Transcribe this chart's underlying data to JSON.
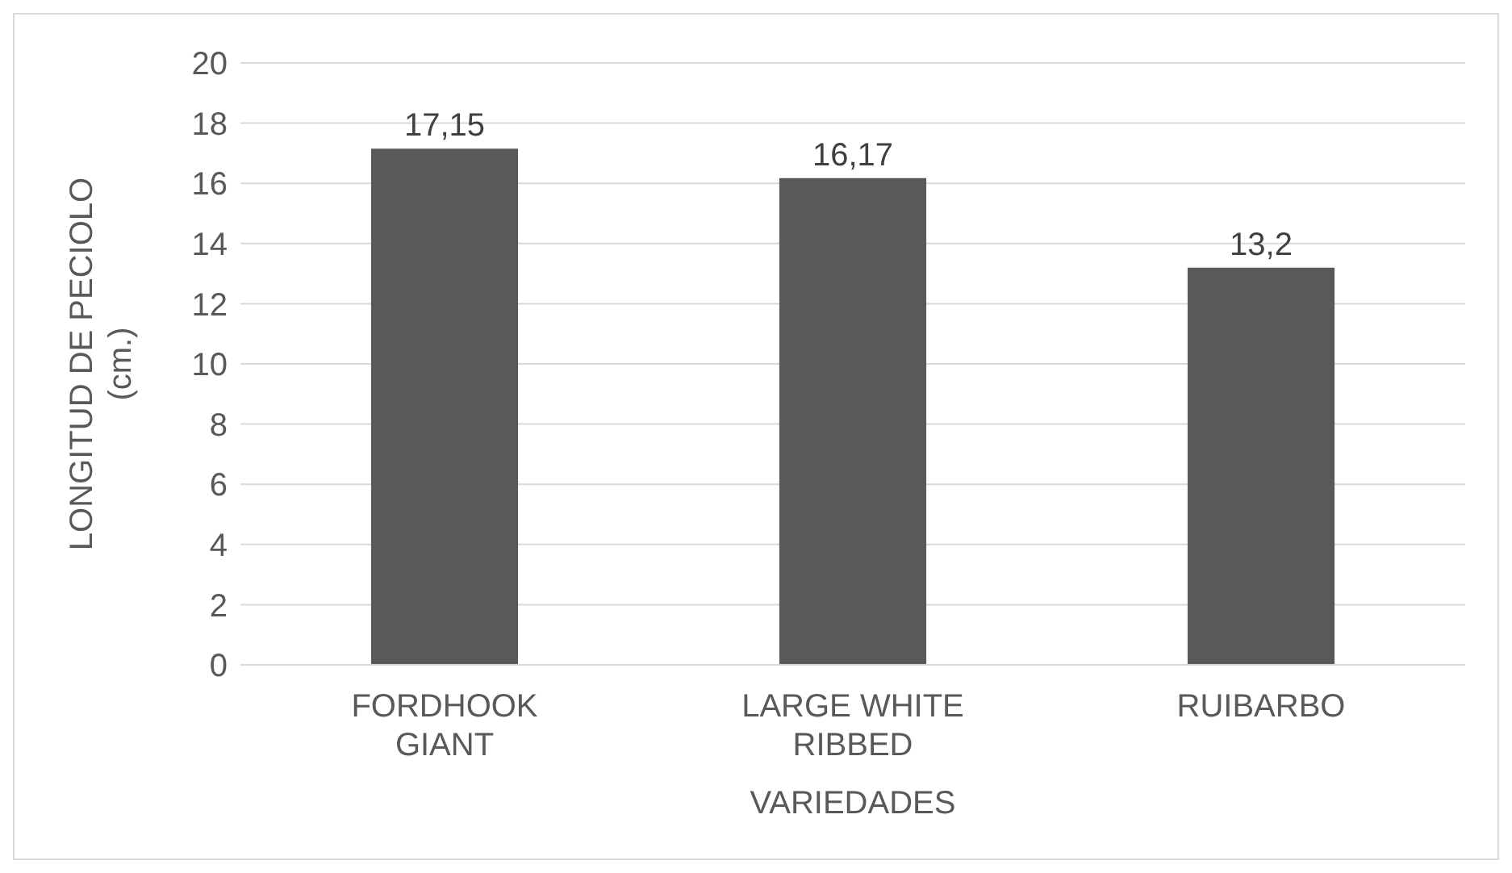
{
  "chart_data": {
    "type": "bar",
    "xlabel": "VARIEDADES",
    "ylabel": "LONGITUD DE PECIOLO (cm.)",
    "categories": [
      "FORDHOOK GIANT",
      "LARGE WHITE RIBBED",
      "RUIBARBO"
    ],
    "values": [
      17.15,
      16.17,
      13.2
    ],
    "value_labels": [
      "17,15",
      "16,17",
      "13,2"
    ],
    "color": "#595959",
    "ylim": [
      0,
      20
    ],
    "yticks": [
      0,
      2,
      4,
      6,
      8,
      10,
      12,
      14,
      16,
      18,
      20
    ],
    "grid": "y"
  }
}
